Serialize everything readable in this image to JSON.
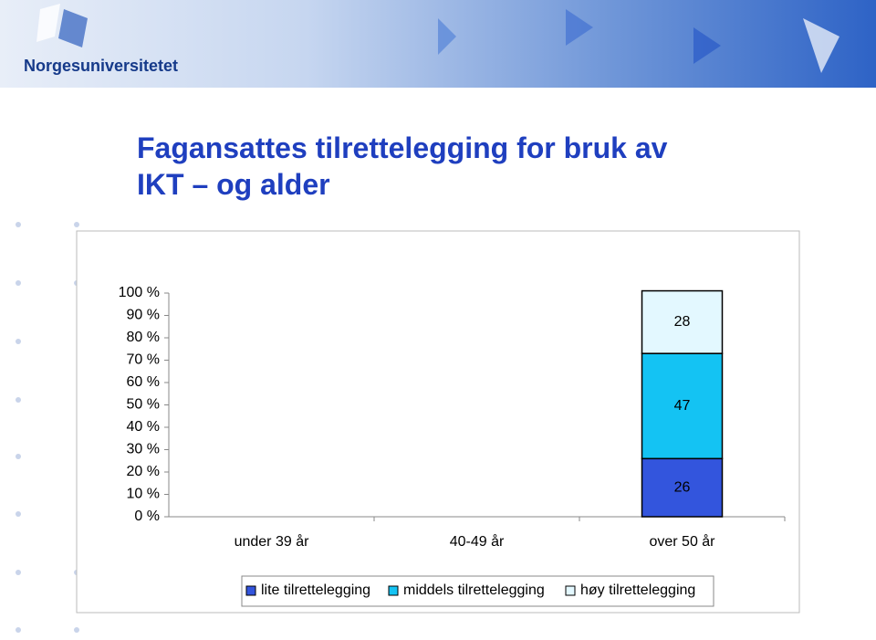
{
  "header": {
    "logo": "Norgesuniversitetet"
  },
  "chart_data": {
    "type": "stacked_bar",
    "title": "Fagansattes tilrettelegging for bruk av\nIKT – og alder",
    "categories": [
      "under 39 år",
      "40-49 år",
      "over 50 år"
    ],
    "series": [
      {
        "name": "lite tilrettelegging",
        "color": "#3355dd",
        "values": [
          null,
          null,
          26
        ]
      },
      {
        "name": "middels tilrettelegging",
        "color": "#14c3f3",
        "values": [
          null,
          null,
          47
        ]
      },
      {
        "name": "høy tilrettelegging",
        "color": "#e3f8ff",
        "values": [
          null,
          null,
          28
        ]
      }
    ],
    "ylim": [
      0,
      100
    ],
    "yticks": [
      {
        "value": 0,
        "label": "0 %"
      },
      {
        "value": 10,
        "label": "10 %"
      },
      {
        "value": 20,
        "label": "20 %"
      },
      {
        "value": 30,
        "label": "30 %"
      },
      {
        "value": 40,
        "label": "40 %"
      },
      {
        "value": 50,
        "label": "50 %"
      },
      {
        "value": 60,
        "label": "60 %"
      },
      {
        "value": 70,
        "label": "70 %"
      },
      {
        "value": 80,
        "label": "80 %"
      },
      {
        "value": 90,
        "label": "90 %"
      },
      {
        "value": 100,
        "label": "100 %"
      }
    ],
    "grid": false,
    "legend": "bottom"
  }
}
